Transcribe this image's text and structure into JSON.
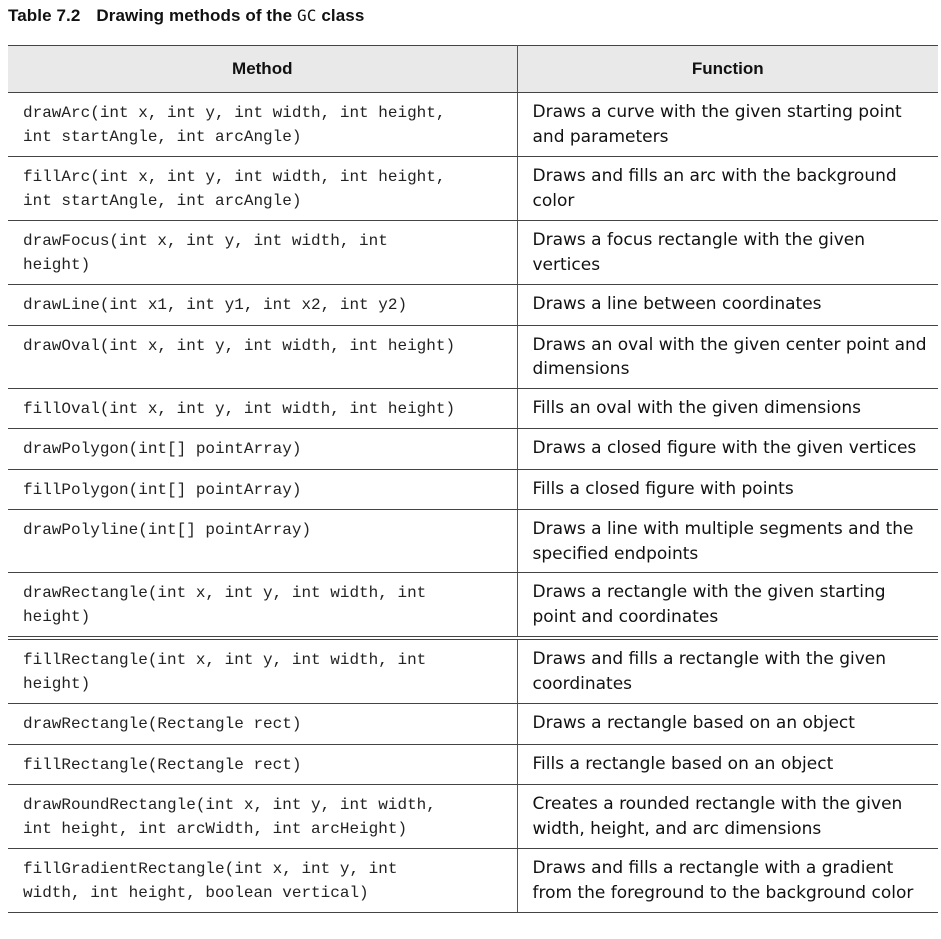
{
  "caption": {
    "number": "Table 7.2",
    "text_before": "Drawing methods of the ",
    "class_name": "GC",
    "text_after": " class"
  },
  "table": {
    "headers": [
      "Method",
      "Function"
    ],
    "rows": [
      {
        "method": "drawArc(int x, int y, int width, int height,\nint startAngle, int arcAngle)",
        "function": "Draws a curve with the given starting point and parameters"
      },
      {
        "method": "fillArc(int x, int y, int width, int height,\nint startAngle, int arcAngle)",
        "function": "Draws and fills an arc with the background color"
      },
      {
        "method": "drawFocus(int x, int y, int width, int\nheight)",
        "function": "Draws a focus rectangle with the given vertices"
      },
      {
        "method": "drawLine(int x1, int y1, int x2, int y2)",
        "function": "Draws a line between coordinates"
      },
      {
        "method": "drawOval(int x, int y, int width, int height)",
        "function": "Draws an oval with the given center point and dimensions"
      },
      {
        "method": "fillOval(int x, int y, int width, int height)",
        "function": "Fills an oval with the given dimensions"
      },
      {
        "method": "drawPolygon(int[] pointArray)",
        "function": "Draws a closed figure with the given vertices"
      },
      {
        "method": "fillPolygon(int[] pointArray)",
        "function": "Fills a closed figure with points"
      },
      {
        "method": "drawPolyline(int[] pointArray)",
        "function": "Draws a line with multiple segments and the specified endpoints"
      },
      {
        "method": "drawRectangle(int x, int y, int width, int\nheight)",
        "function": "Draws a rectangle with the given starting point and coordinates"
      },
      {
        "method": "fillRectangle(int x, int y, int width, int\nheight)",
        "function": "Draws and fills a rectangle with the given coordinates"
      },
      {
        "method": "drawRectangle(Rectangle rect)",
        "function": "Draws a rectangle based on an object"
      },
      {
        "method": "fillRectangle(Rectangle rect)",
        "function": "Fills a rectangle based on an object"
      },
      {
        "method": "drawRoundRectangle(int x, int y, int width,\nint height, int arcWidth, int arcHeight)",
        "function": "Creates a rounded rectangle with the given width, height, and arc dimensions"
      },
      {
        "method": "fillGradientRectangle(int x, int y, int\nwidth, int height, boolean vertical)",
        "function": "Draws and fills a rectangle with a gradient from the foreground to the background color"
      }
    ]
  }
}
